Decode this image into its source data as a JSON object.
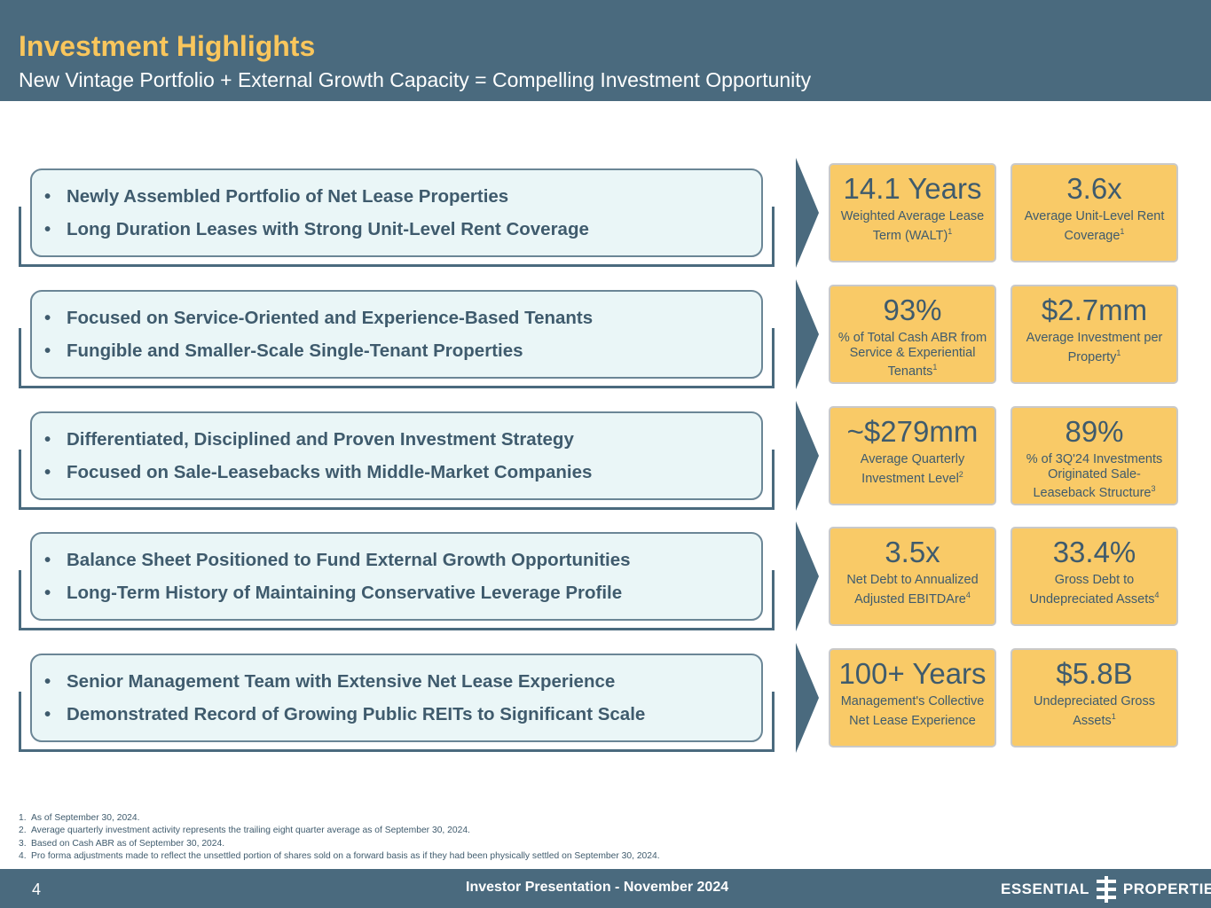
{
  "header": {
    "title": "Investment Highlights",
    "subtitle": "New Vintage Portfolio + External Growth Capacity = Compelling Investment Opportunity"
  },
  "bullet_glyph": "•",
  "rows": [
    {
      "bullets": [
        "Newly Assembled Portfolio of Net Lease Properties",
        "Long Duration Leases with Strong Unit-Level Rent Coverage"
      ],
      "stats": [
        {
          "value": "14.1 Years",
          "label": "Weighted Average Lease Term (WALT)",
          "note": "1"
        },
        {
          "value": "3.6x",
          "label": "Average Unit-Level Rent Coverage",
          "note": "1"
        }
      ]
    },
    {
      "bullets": [
        "Focused on Service-Oriented and Experience-Based Tenants",
        "Fungible and Smaller-Scale Single-Tenant Properties"
      ],
      "stats": [
        {
          "value": "93%",
          "label": "% of Total Cash ABR from Service & Experiential Tenants",
          "note": "1"
        },
        {
          "value": "$2.7mm",
          "label": "Average Investment per Property",
          "note": "1"
        }
      ]
    },
    {
      "bullets": [
        "Differentiated, Disciplined and Proven Investment Strategy",
        "Focused on Sale-Leasebacks with Middle-Market Companies"
      ],
      "stats": [
        {
          "value": "~$279mm",
          "label": "Average Quarterly Investment Level",
          "note": "2"
        },
        {
          "value": "89%",
          "label": "% of 3Q'24 Investments Originated Sale-Leaseback Structure",
          "note": "3"
        }
      ]
    },
    {
      "bullets": [
        "Balance Sheet Positioned to Fund External Growth Opportunities",
        "Long-Term History of Maintaining Conservative Leverage Profile"
      ],
      "stats": [
        {
          "value": "3.5x",
          "label": "Net Debt to Annualized Adjusted EBITDAre",
          "note": "4"
        },
        {
          "value": "33.4%",
          "label": "Gross Debt to Undepreciated Assets",
          "note": "4"
        }
      ]
    },
    {
      "bullets": [
        "Senior Management Team with Extensive Net Lease Experience",
        "Demonstrated Record of Growing Public REITs to Significant Scale"
      ],
      "stats": [
        {
          "value": "100+ Years",
          "label": "Management's Collective Net Lease Experience",
          "note": ""
        },
        {
          "value": "$5.8B",
          "label": "Undepreciated Gross Assets",
          "note": "1"
        }
      ]
    }
  ],
  "footnotes": [
    {
      "num": "1.",
      "text": "As of September 30, 2024."
    },
    {
      "num": "2.",
      "text": "Average quarterly investment activity represents the trailing eight quarter average as of September 30, 2024."
    },
    {
      "num": "3.",
      "text": "Based on Cash ABR as of September 30, 2024."
    },
    {
      "num": "4.",
      "text": "Pro forma adjustments made to reflect the unsettled portion of shares sold on a forward basis as if they had been physically settled on September 30, 2024."
    }
  ],
  "footer": {
    "page_number": "4",
    "center_text": "Investor Presentation - November 2024",
    "brand_left": "ESSENTIAL",
    "brand_right": "PROPERTIES"
  },
  "colors": {
    "header_bg": "#4a6a7e",
    "title_accent": "#f9c65c",
    "stat_bg": "#f9ca67",
    "pill_bg": "#eaf6f7",
    "text_dark": "#3f5b6d"
  }
}
